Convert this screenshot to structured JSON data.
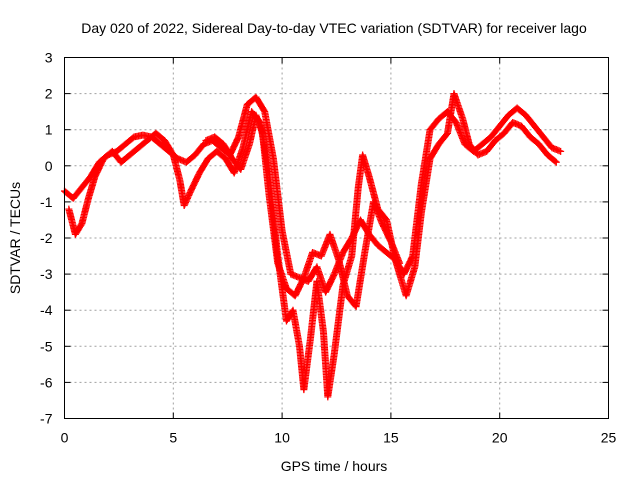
{
  "chart_data": {
    "type": "scatter",
    "title": "Day 020 of 2022, Sidereal Day-to-day VTEC variation (SDTVAR) for receiver lago",
    "xlabel": "GPS time / hours",
    "ylabel": "SDTVAR / TECUs",
    "xlim": [
      0,
      25
    ],
    "ylim": [
      -7,
      3
    ],
    "xticks": [
      0,
      5,
      10,
      15,
      20,
      25
    ],
    "yticks": [
      -7,
      -6,
      -5,
      -4,
      -3,
      -2,
      -1,
      0,
      1,
      2,
      3
    ],
    "grid": true,
    "marker": "+",
    "color": "#ff0000",
    "series": [
      {
        "name": "satellite-track-1",
        "points": [
          [
            0.0,
            -0.7
          ],
          [
            0.4,
            -0.9
          ],
          [
            0.8,
            -0.6
          ],
          [
            1.2,
            -0.3
          ],
          [
            1.6,
            0.1
          ],
          [
            2.0,
            0.3
          ],
          [
            2.4,
            0.4
          ],
          [
            2.8,
            0.6
          ],
          [
            3.2,
            0.8
          ],
          [
            3.6,
            0.85
          ],
          [
            4.0,
            0.8
          ],
          [
            4.4,
            0.6
          ],
          [
            4.8,
            0.4
          ],
          [
            5.2,
            0.2
          ],
          [
            5.6,
            0.1
          ],
          [
            6.0,
            0.3
          ],
          [
            6.4,
            0.6
          ],
          [
            6.8,
            0.7
          ],
          [
            7.2,
            0.5
          ],
          [
            7.6,
            0.3
          ],
          [
            8.0,
            0.8
          ],
          [
            8.4,
            1.7
          ],
          [
            8.8,
            1.9
          ],
          [
            9.2,
            1.5
          ],
          [
            9.6,
            0.2
          ],
          [
            10.0,
            -1.8
          ],
          [
            10.4,
            -3.0
          ],
          [
            10.8,
            -3.1
          ],
          [
            11.2,
            -3.2
          ],
          [
            11.6,
            -2.8
          ],
          [
            12.0,
            -3.5
          ],
          [
            12.4,
            -3.0
          ],
          [
            12.8,
            -2.4
          ],
          [
            13.2,
            -2.0
          ],
          [
            13.6,
            -1.5
          ],
          [
            14.0,
            -1.9
          ],
          [
            14.4,
            -2.2
          ],
          [
            14.8,
            -2.4
          ],
          [
            15.2,
            -2.6
          ],
          [
            15.6,
            -3.0
          ],
          [
            16.0,
            -2.5
          ],
          [
            16.4,
            -0.5
          ],
          [
            16.8,
            1.0
          ],
          [
            17.2,
            1.3
          ],
          [
            17.6,
            1.5
          ],
          [
            18.0,
            1.2
          ],
          [
            18.4,
            0.6
          ],
          [
            18.8,
            0.4
          ],
          [
            19.2,
            0.6
          ],
          [
            19.6,
            0.8
          ],
          [
            20.0,
            1.1
          ],
          [
            20.4,
            1.4
          ],
          [
            20.8,
            1.6
          ],
          [
            21.2,
            1.4
          ],
          [
            21.6,
            1.1
          ],
          [
            22.0,
            0.8
          ],
          [
            22.4,
            0.5
          ],
          [
            22.8,
            0.4
          ]
        ]
      },
      {
        "name": "satellite-track-2",
        "points": [
          [
            0.2,
            -1.2
          ],
          [
            0.5,
            -1.9
          ],
          [
            0.8,
            -1.6
          ],
          [
            1.1,
            -0.9
          ],
          [
            1.4,
            -0.3
          ],
          [
            1.8,
            0.2
          ],
          [
            2.2,
            0.4
          ],
          [
            2.6,
            0.1
          ],
          [
            3.0,
            0.3
          ],
          [
            3.4,
            0.5
          ],
          [
            3.8,
            0.7
          ],
          [
            4.2,
            0.9
          ],
          [
            4.6,
            0.7
          ],
          [
            5.0,
            0.3
          ],
          [
            5.3,
            -0.4
          ],
          [
            5.5,
            -1.1
          ],
          [
            5.8,
            -0.7
          ],
          [
            6.2,
            -0.2
          ],
          [
            6.6,
            0.2
          ],
          [
            7.0,
            0.4
          ],
          [
            7.4,
            0.2
          ],
          [
            7.8,
            -0.2
          ],
          [
            8.2,
            0.5
          ],
          [
            8.6,
            1.5
          ],
          [
            9.0,
            1.2
          ],
          [
            9.4,
            -0.2
          ],
          [
            9.8,
            -2.5
          ],
          [
            10.2,
            -4.3
          ],
          [
            10.5,
            -4.0
          ],
          [
            10.8,
            -5.0
          ],
          [
            11.0,
            -6.2
          ],
          [
            11.3,
            -4.8
          ],
          [
            11.6,
            -3.2
          ],
          [
            11.9,
            -4.6
          ],
          [
            12.1,
            -6.4
          ],
          [
            12.4,
            -5.2
          ],
          [
            12.8,
            -3.3
          ],
          [
            13.2,
            -2.5
          ],
          [
            13.5,
            -0.6
          ],
          [
            13.7,
            0.3
          ],
          [
            14.0,
            -0.3
          ],
          [
            14.4,
            -1.2
          ],
          [
            14.8,
            -1.5
          ],
          [
            15.2,
            -2.6
          ],
          [
            15.7,
            -3.6
          ],
          [
            16.1,
            -2.8
          ],
          [
            16.4,
            -1.3
          ],
          [
            16.8,
            0.2
          ],
          [
            17.2,
            0.6
          ],
          [
            17.6,
            0.9
          ],
          [
            17.9,
            2.0
          ],
          [
            18.3,
            1.3
          ],
          [
            18.6,
            0.6
          ],
          [
            19.0,
            0.3
          ],
          [
            19.4,
            0.4
          ],
          [
            19.8,
            0.7
          ],
          [
            20.2,
            0.9
          ],
          [
            20.6,
            1.2
          ],
          [
            21.0,
            1.1
          ],
          [
            21.4,
            0.8
          ],
          [
            21.8,
            0.6
          ],
          [
            22.2,
            0.3
          ],
          [
            22.6,
            0.1
          ]
        ]
      },
      {
        "name": "satellite-track-3",
        "points": [
          [
            6.5,
            0.7
          ],
          [
            6.9,
            0.8
          ],
          [
            7.3,
            0.6
          ],
          [
            7.7,
            0.2
          ],
          [
            8.1,
            -0.1
          ],
          [
            8.5,
            0.6
          ],
          [
            8.8,
            1.4
          ],
          [
            9.1,
            0.9
          ],
          [
            9.4,
            -0.8
          ],
          [
            9.8,
            -2.7
          ],
          [
            10.2,
            -3.4
          ],
          [
            10.6,
            -3.6
          ],
          [
            11.0,
            -3.1
          ],
          [
            11.4,
            -2.4
          ],
          [
            11.8,
            -2.5
          ],
          [
            12.2,
            -1.9
          ],
          [
            12.6,
            -2.6
          ],
          [
            13.0,
            -3.6
          ],
          [
            13.4,
            -3.9
          ],
          [
            13.8,
            -2.4
          ],
          [
            14.2,
            -1.0
          ],
          [
            14.6,
            -1.6
          ],
          [
            15.0,
            -2.1
          ],
          [
            15.4,
            -2.7
          ]
        ]
      }
    ]
  }
}
